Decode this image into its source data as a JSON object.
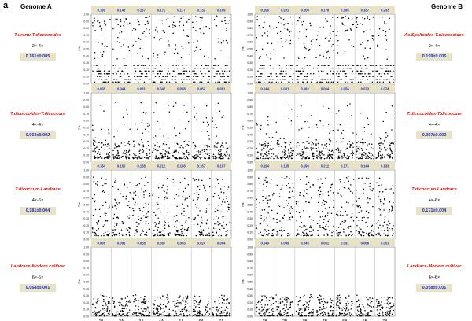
{
  "figure": {
    "panel_letter": "a",
    "genome_a_title": "Genome A",
    "genome_b_title": "Genome B"
  },
  "rows": [
    {
      "a": {
        "label": "T.urartu-T.dicoccoides",
        "ploidy": "2×-4×",
        "mean": "0.161±0.005",
        "fst": [
          "0.189",
          "0.143",
          "0.187",
          "0.171",
          "0.177",
          "0.132",
          "0.169"
        ]
      },
      "b": {
        "label": "Ae.Speltoides-T.dicoccoides",
        "ploidy": "2×-4×",
        "mean": "0.199±0.005",
        "fst": [
          "0.196",
          "0.201",
          "0.200",
          "0.178",
          "0.195",
          "0.187",
          "0.233"
        ]
      }
    },
    {
      "a": {
        "label": "T.dicoccoides-T.dicoccum",
        "ploidy": "4×-4×",
        "mean": "0.063±0.002",
        "fst": [
          "0.056",
          "0.044",
          "0.081",
          "0.047",
          "0.058",
          "0.062",
          "0.081"
        ]
      },
      "b": {
        "label": "T.dicoccoides-T.dicoccum",
        "ploidy": "4×-4×",
        "mean": "0.067±0.002",
        "fst": [
          "0.044",
          "0.081",
          "0.062",
          "0.064",
          "0.056",
          "0.073",
          "0.074"
        ]
      }
    },
    {
      "a": {
        "label": "T.dicoccum-Landrace",
        "ploidy": "4×-6×",
        "mean": "0.181±0.004",
        "fst": [
          "0.184",
          "0.150",
          "0.168",
          "0.212",
          "0.186",
          "0.167",
          "0.187"
        ]
      },
      "b": {
        "label": "T.dicoccum-Landrace",
        "ploidy": "4×-6×",
        "mean": "0.171±0.004",
        "fst": [
          "0.194",
          "0.185",
          "0.196",
          "0.212",
          "0.171",
          "0.144",
          "0.133"
        ]
      }
    },
    {
      "a": {
        "label": "Landrace-Modern cultivar",
        "ploidy": "6×-6×",
        "mean": "0.064±0.001",
        "fst": [
          "0.066",
          "0.096",
          "0.068",
          "0.067",
          "0.055",
          "0.024",
          "0.064"
        ]
      },
      "b": {
        "label": "Landrace-Modern cultivar",
        "ploidy": "6×-6×",
        "mean": "0.058±0.001",
        "fst": [
          "0.049",
          "0.039",
          "0.045",
          "0.061",
          "0.091",
          "0.066",
          "0.051"
        ]
      }
    }
  ],
  "chart_data": {
    "type": "scatter",
    "description_axes": "Manhattan-style Fst scatter per chromosome",
    "ylabel": "Fst",
    "ylim": [
      0,
      1
    ],
    "yticks": [
      "0.00",
      "0.10",
      "0.20",
      "0.30",
      "0.40",
      "0.50",
      "0.60",
      "0.70",
      "0.80",
      "0.90",
      "1.00"
    ],
    "categories_a": [
      "1A",
      "2A",
      "3A",
      "4A",
      "5A",
      "6A",
      "7A"
    ],
    "categories_b": [
      "1B",
      "2B",
      "3B",
      "4B",
      "5B",
      "6B",
      "7B"
    ],
    "panels": 8,
    "colors": {
      "points": "#000000",
      "mean_text": "#1f2fd0",
      "label": "#e3120b",
      "box": "#e8e2c6"
    }
  }
}
